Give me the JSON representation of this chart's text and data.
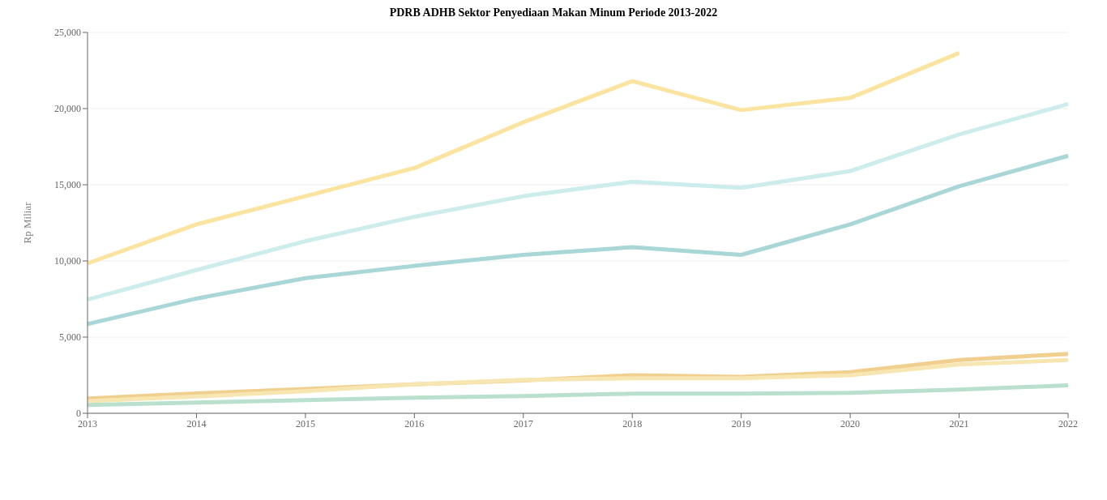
{
  "chart_data": {
    "type": "line",
    "title": "PDRB ADHB Sektor Penyediaan Makan Minum Periode 2013-2022",
    "ylabel": "Rp Miliar",
    "categories": [
      "2013",
      "2014",
      "2015",
      "2016",
      "2017",
      "2018",
      "2019",
      "2020",
      "2021",
      "2022"
    ],
    "series": [
      {
        "color": "#fbe3a0",
        "values": [
          9840,
          12400,
          14250,
          16100,
          19100,
          21800,
          19900,
          20700,
          23650,
          null
        ]
      },
      {
        "color": "#cdecec",
        "values": [
          7470,
          9400,
          11300,
          12900,
          14250,
          15200,
          14800,
          15900,
          18300,
          20300
        ]
      },
      {
        "color": "#a9d6d6",
        "values": [
          5860,
          7530,
          8870,
          9680,
          10400,
          10900,
          10400,
          12400,
          14900,
          16900
        ]
      },
      {
        "color": "#f1cf8f",
        "values": [
          970,
          1300,
          1600,
          1900,
          2150,
          2500,
          2400,
          2700,
          3500,
          3900
        ]
      },
      {
        "color": "#f7e6b2",
        "values": [
          800,
          1100,
          1450,
          1900,
          2200,
          2300,
          2300,
          2500,
          3200,
          3500
        ]
      },
      {
        "color": "#b8e0cd",
        "values": [
          540,
          700,
          860,
          1020,
          1130,
          1290,
          1290,
          1340,
          1560,
          1830
        ]
      }
    ],
    "ylim": [
      0,
      25000
    ],
    "yticks": [
      0,
      {
        "value": 5000,
        "label": "5,000"
      },
      {
        "value": 10000,
        "label": "10,000"
      },
      {
        "value": 15000,
        "label": "15,000"
      },
      {
        "value": 20000,
        "label": "20,000"
      },
      {
        "value": 25000,
        "label": "25,000"
      }
    ],
    "grid": "y",
    "marker": "none",
    "line_style": "solid"
  }
}
